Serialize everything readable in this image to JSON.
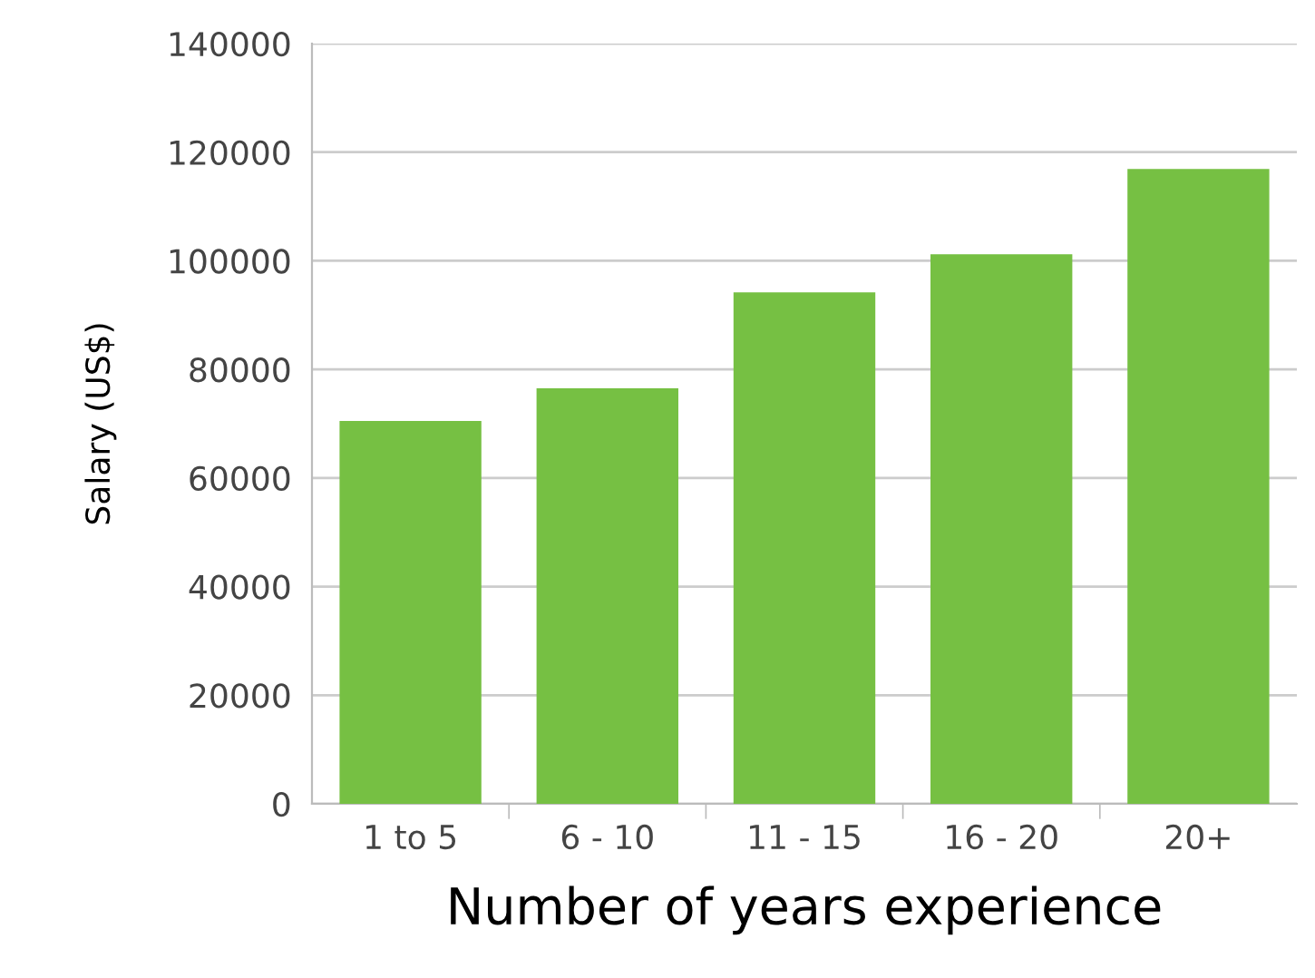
{
  "chart_data": {
    "type": "bar",
    "xlabel": "Number of years experience",
    "ylabel": "Salary (US$)",
    "categories": [
      "1 to 5",
      "6 - 10",
      "11 - 15",
      "16 - 20",
      "20+"
    ],
    "values": [
      70500,
      76500,
      94200,
      101200,
      116900
    ],
    "color": "#76c043",
    "ylim": [
      0,
      140000
    ],
    "yticks": [
      0,
      20000,
      40000,
      60000,
      80000,
      100000,
      120000,
      140000
    ],
    "grid": "y"
  }
}
